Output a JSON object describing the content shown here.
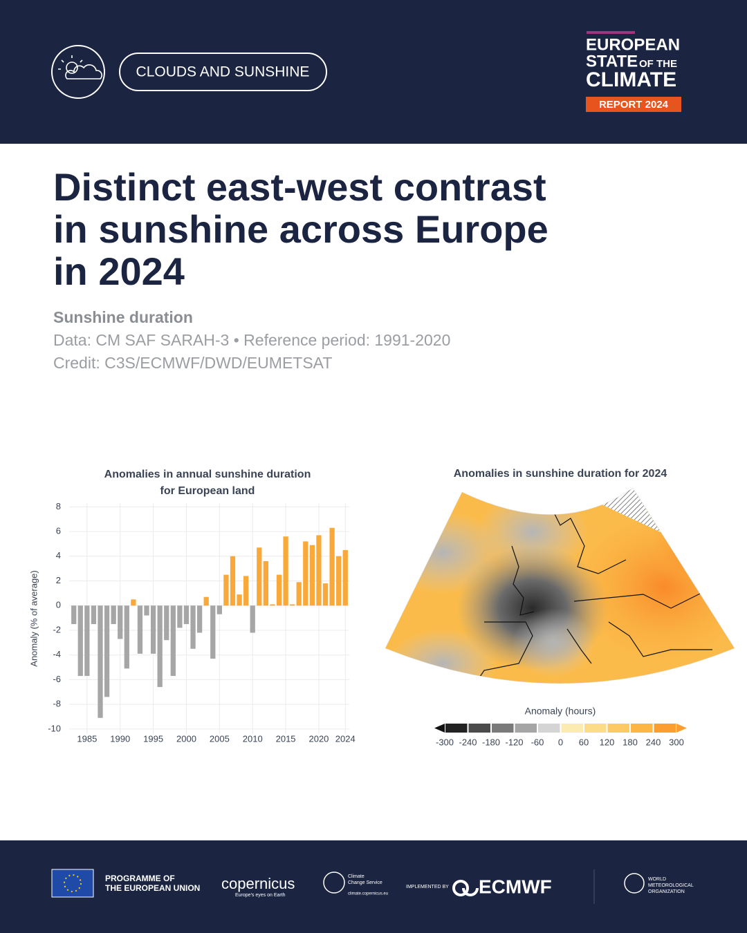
{
  "header": {
    "section": "CLOUDS AND SUNSHINE",
    "logo": [
      "EUROPEAN",
      "STATE",
      "OF THE",
      "CLIMATE"
    ],
    "badge": "REPORT 2024"
  },
  "title": "Distinct east-west contrast in sunshine across Europe in 2024",
  "subtitle": {
    "heading": "Sunshine duration",
    "data": "Data: CM SAF SARAH-3 • Reference period: 1991-2020",
    "credit": "Credit: C3S/ECMWF/DWD/EUMETSAT"
  },
  "chart_data": [
    {
      "type": "bar",
      "title": [
        "Anomalies in annual sunshine duration",
        "for European land"
      ],
      "ylabel": "Anomaly (% of average)",
      "x": [
        1983,
        1984,
        1985,
        1986,
        1987,
        1988,
        1989,
        1990,
        1991,
        1992,
        1993,
        1994,
        1995,
        1996,
        1997,
        1998,
        1999,
        2000,
        2001,
        2002,
        2003,
        2004,
        2005,
        2006,
        2007,
        2008,
        2009,
        2010,
        2011,
        2012,
        2013,
        2014,
        2015,
        2016,
        2017,
        2018,
        2019,
        2020,
        2021,
        2022,
        2023,
        2024
      ],
      "values": [
        -1.5,
        -5.7,
        -5.7,
        -1.5,
        -9.1,
        -7.4,
        -1.5,
        -2.7,
        -5.1,
        0.5,
        -3.9,
        -0.8,
        -3.9,
        -6.6,
        -2.8,
        -5.7,
        -1.8,
        -1.5,
        -3.5,
        -2.2,
        0.7,
        -4.3,
        -0.7,
        2.5,
        4.0,
        0.9,
        2.4,
        -2.2,
        4.7,
        3.6,
        0.1,
        2.5,
        5.6,
        0.1,
        1.9,
        5.2,
        4.9,
        5.7,
        1.8,
        6.3,
        4.0,
        4.5
      ],
      "color_negative": "#a6a6a6",
      "color_positive": "#f9a93a",
      "xlim": [
        1982.3,
        2024.6
      ],
      "xticks": [
        1985,
        1990,
        1995,
        2000,
        2005,
        2010,
        2015,
        2020,
        2024
      ],
      "ylim": [
        -10.4,
        8.3
      ],
      "yticks": [
        -10,
        -8,
        -6,
        -4,
        -2,
        0,
        2,
        4,
        6,
        8
      ],
      "grid": true
    },
    {
      "type": "map",
      "title": "Anomalies in sunshine duration for 2024",
      "colorbar": {
        "label": "Anomaly (hours)",
        "ticks": [
          -300,
          -240,
          -180,
          -120,
          -60,
          0,
          60,
          120,
          180,
          240,
          300
        ],
        "colors": [
          "#222222",
          "#4b4b4b",
          "#7a7a7a",
          "#a5a5a5",
          "#d4d4d4",
          "#fcebb0",
          "#fddc88",
          "#fdc962",
          "#fdb544",
          "#fb9d2f"
        ],
        "under_color": "#111111",
        "over_color": "#fb9d2f"
      }
    }
  ],
  "footer": {
    "eu": [
      "PROGRAMME OF",
      "THE EUROPEAN UNION"
    ],
    "copernicus": "copernicus",
    "copernicus_tag": "Europe's eyes on Earth",
    "c3s": [
      "Climate",
      "Change Service"
    ],
    "c3s_url": "climate.copernicus.eu",
    "implemented": "IMPLEMENTED BY",
    "ecmwf": "ECMWF",
    "wmo": [
      "WORLD",
      "METEOROLOGICAL",
      "ORGANIZATION"
    ]
  }
}
